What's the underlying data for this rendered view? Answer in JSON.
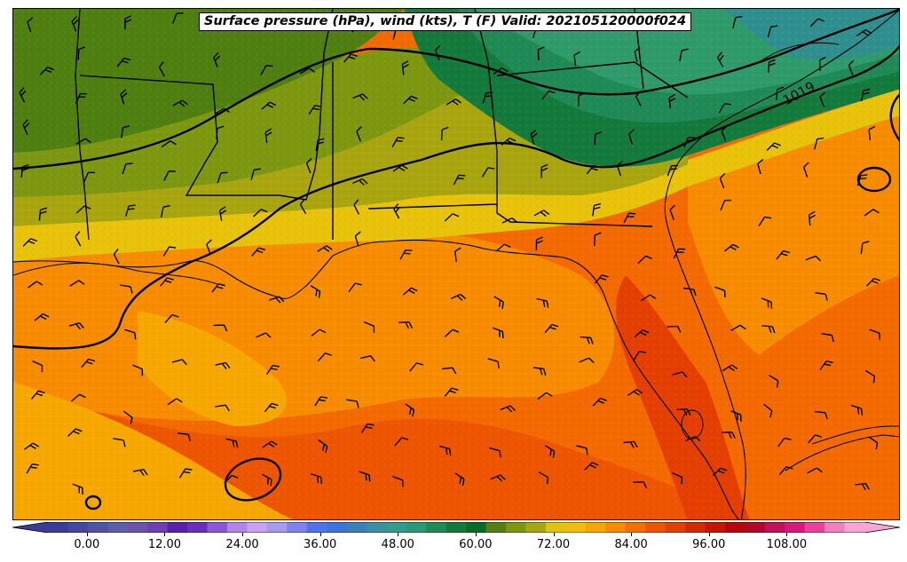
{
  "title": "Surface pressure (hPa), wind (kts), T (F) Valid: 202105120000f024",
  "contour_labels": [
    {
      "text": "1019",
      "value": 1019
    }
  ],
  "colorbar": {
    "min": -6,
    "max": 120,
    "ticks": [
      "0.00",
      "12.00",
      "24.00",
      "36.00",
      "48.00",
      "60.00",
      "72.00",
      "84.00",
      "96.00",
      "108.00"
    ],
    "tick_values": [
      0,
      12,
      24,
      36,
      48,
      60,
      72,
      84,
      96,
      108
    ],
    "colors": [
      "#3b3b9a",
      "#45469f",
      "#5152a5",
      "#5d5ea9",
      "#6a55a8",
      "#6d41b0",
      "#5b1fb0",
      "#6a2dbd",
      "#8e56d6",
      "#b084e8",
      "#c9a2f2",
      "#a89af0",
      "#7f83ee",
      "#4d74ee",
      "#3b74dd",
      "#3d7fb8",
      "#3a8fa2",
      "#339b8e",
      "#2b9977",
      "#1f8a55",
      "#137a3c",
      "#0a6a28",
      "#557f10",
      "#7e9710",
      "#a9a50f",
      "#e2c20a",
      "#f3bd05",
      "#fba300",
      "#fb8a00",
      "#f66d00",
      "#f05400",
      "#e43e00",
      "#d42a00",
      "#c91400",
      "#b8050a",
      "#b3062a",
      "#c2105a",
      "#d8187c",
      "#ee3f9e",
      "#f57ec0",
      "#fba4d8"
    ]
  },
  "map_colors": {
    "deep_green": "#2f9a6a",
    "green": "#1f8a55",
    "dark_green": "#137a3c",
    "olive": "#4f7f10",
    "olive_light": "#7e9710",
    "mustard": "#a9a50f",
    "yellow": "#e8c30a",
    "orange_light": "#f7a800",
    "orange": "#f88c00",
    "orange_red": "#f46a00",
    "red_orange": "#ee5500",
    "teal": "#2f8f8f"
  }
}
